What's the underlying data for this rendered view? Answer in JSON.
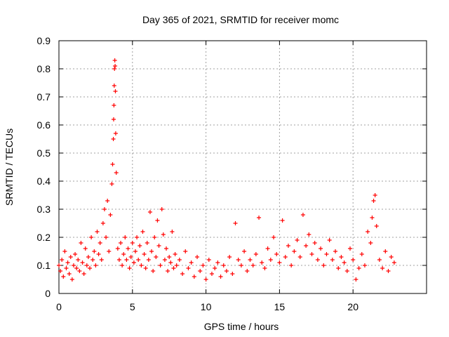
{
  "chart_data": {
    "type": "scatter",
    "title": "Day 365 of 2021, SRMTID for receiver momc",
    "xlabel": "GPS time / hours",
    "ylabel": "SRMTID / TECUs",
    "xlim": [
      0,
      25
    ],
    "ylim": [
      0,
      0.9
    ],
    "xticks": [
      0,
      5,
      10,
      15,
      20
    ],
    "yticks": [
      0,
      0.1,
      0.2,
      0.3,
      0.4,
      0.5,
      0.6,
      0.7,
      0.8,
      0.9
    ],
    "grid": true,
    "marker": "+",
    "color": "#ff0000",
    "series": [
      {
        "name": "SRMTID",
        "x": [
          0.0,
          0.1,
          0.2,
          0.3,
          0.4,
          0.5,
          0.6,
          0.7,
          0.8,
          0.9,
          1.0,
          1.1,
          1.2,
          1.3,
          1.4,
          1.5,
          1.6,
          1.7,
          1.8,
          1.9,
          2.0,
          2.1,
          2.2,
          2.3,
          2.4,
          2.5,
          2.6,
          2.7,
          2.8,
          2.9,
          3.0,
          3.1,
          3.2,
          3.3,
          3.4,
          3.5,
          3.6,
          3.65,
          3.7,
          3.72,
          3.74,
          3.76,
          3.78,
          3.8,
          3.82,
          3.84,
          3.86,
          3.9,
          4.0,
          4.1,
          4.2,
          4.3,
          4.4,
          4.5,
          4.6,
          4.7,
          4.8,
          4.9,
          5.0,
          5.1,
          5.2,
          5.3,
          5.4,
          5.5,
          5.6,
          5.7,
          5.8,
          5.9,
          6.0,
          6.1,
          6.2,
          6.3,
          6.4,
          6.5,
          6.6,
          6.7,
          6.8,
          6.9,
          7.0,
          7.1,
          7.2,
          7.3,
          7.4,
          7.5,
          7.6,
          7.7,
          7.8,
          7.9,
          8.0,
          8.2,
          8.4,
          8.6,
          8.8,
          9.0,
          9.2,
          9.4,
          9.6,
          9.8,
          10.0,
          10.2,
          10.4,
          10.6,
          10.8,
          11.0,
          11.2,
          11.4,
          11.6,
          11.8,
          12.0,
          12.2,
          12.4,
          12.6,
          12.8,
          13.0,
          13.2,
          13.4,
          13.6,
          13.8,
          14.0,
          14.2,
          14.4,
          14.6,
          14.8,
          15.0,
          15.2,
          15.4,
          15.6,
          15.8,
          16.0,
          16.2,
          16.4,
          16.6,
          16.8,
          17.0,
          17.2,
          17.4,
          17.6,
          17.8,
          18.0,
          18.2,
          18.4,
          18.6,
          18.8,
          19.0,
          19.2,
          19.4,
          19.6,
          19.8,
          20.0,
          20.2,
          20.4,
          20.6,
          20.8,
          21.0,
          21.2,
          21.3,
          21.4,
          21.5,
          21.6,
          21.8,
          22.0,
          22.2,
          22.4,
          22.6,
          22.8
        ],
        "y": [
          0.1,
          0.08,
          0.12,
          0.06,
          0.15,
          0.09,
          0.11,
          0.07,
          0.13,
          0.05,
          0.1,
          0.14,
          0.09,
          0.12,
          0.08,
          0.18,
          0.11,
          0.07,
          0.16,
          0.1,
          0.13,
          0.09,
          0.2,
          0.12,
          0.15,
          0.1,
          0.22,
          0.14,
          0.18,
          0.12,
          0.25,
          0.3,
          0.2,
          0.33,
          0.15,
          0.28,
          0.39,
          0.46,
          0.55,
          0.62,
          0.67,
          0.74,
          0.8,
          0.83,
          0.81,
          0.72,
          0.57,
          0.43,
          0.16,
          0.12,
          0.18,
          0.1,
          0.14,
          0.2,
          0.12,
          0.16,
          0.09,
          0.13,
          0.18,
          0.11,
          0.15,
          0.2,
          0.12,
          0.17,
          0.1,
          0.22,
          0.14,
          0.09,
          0.18,
          0.12,
          0.29,
          0.15,
          0.08,
          0.2,
          0.13,
          0.26,
          0.17,
          0.1,
          0.3,
          0.21,
          0.12,
          0.16,
          0.08,
          0.13,
          0.11,
          0.22,
          0.09,
          0.14,
          0.1,
          0.12,
          0.07,
          0.15,
          0.09,
          0.11,
          0.06,
          0.13,
          0.08,
          0.1,
          0.05,
          0.12,
          0.07,
          0.09,
          0.11,
          0.06,
          0.1,
          0.08,
          0.13,
          0.07,
          0.25,
          0.12,
          0.1,
          0.15,
          0.08,
          0.12,
          0.1,
          0.14,
          0.27,
          0.11,
          0.09,
          0.16,
          0.12,
          0.2,
          0.14,
          0.11,
          0.26,
          0.13,
          0.17,
          0.1,
          0.15,
          0.19,
          0.13,
          0.28,
          0.17,
          0.21,
          0.14,
          0.18,
          0.12,
          0.16,
          0.1,
          0.14,
          0.19,
          0.12,
          0.15,
          0.09,
          0.13,
          0.11,
          0.08,
          0.16,
          0.12,
          0.05,
          0.09,
          0.14,
          0.1,
          0.22,
          0.18,
          0.27,
          0.33,
          0.35,
          0.24,
          0.12,
          0.09,
          0.15,
          0.08,
          0.13,
          0.11
        ]
      }
    ]
  }
}
